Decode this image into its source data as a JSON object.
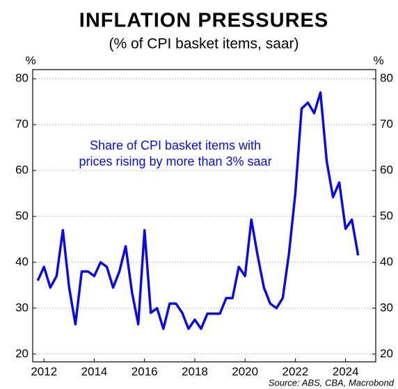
{
  "chart_data": {
    "type": "line",
    "title": "INFLATION PRESSURES",
    "subtitle": "(% of CPI basket items, saar)",
    "y_label": "%",
    "y2_label": "%",
    "annotation": [
      "Share of CPI basket items with",
      "prices rising by more than 3% saar"
    ],
    "source": "Source: ABS, CBA, Macrobond",
    "x": [
      2011.75,
      2012,
      2012.25,
      2012.5,
      2012.75,
      2013,
      2013.25,
      2013.5,
      2013.75,
      2014,
      2014.25,
      2014.5,
      2014.75,
      2015,
      2015.25,
      2015.5,
      2015.75,
      2016,
      2016.25,
      2016.5,
      2016.75,
      2017,
      2017.25,
      2017.5,
      2017.75,
      2018,
      2018.25,
      2018.5,
      2018.75,
      2019,
      2019.25,
      2019.5,
      2019.75,
      2020,
      2020.25,
      2020.5,
      2020.75,
      2021,
      2021.25,
      2021.5,
      2021.75,
      2022,
      2022.25,
      2022.5,
      2022.75,
      2023,
      2023.25,
      2023.5,
      2023.75,
      2024,
      2024.25,
      2024.5
    ],
    "series": [
      {
        "name": "Share of CPI basket items",
        "color": "#0b0bdf",
        "values": [
          36,
          39,
          34.5,
          37,
          47,
          34.5,
          26.5,
          38,
          38,
          37,
          40,
          39,
          34.5,
          38,
          43.5,
          33.5,
          26.5,
          47,
          29,
          30,
          25.5,
          31,
          31,
          29,
          25.5,
          27.5,
          25.5,
          28.8,
          28.8,
          28.8,
          32.2,
          32.2,
          39,
          37,
          49.3,
          41.5,
          34.5,
          31,
          30,
          32.2,
          42,
          55,
          73.5,
          74.8,
          72.5,
          77,
          62,
          54.2,
          57.4,
          47.3,
          49.3,
          41.5
        ]
      }
    ],
    "xlim": [
      2011.55,
      2025.2
    ],
    "xticks": [
      2012,
      2014,
      2016,
      2018,
      2020,
      2022,
      2024
    ],
    "ylim": [
      18.3,
      82
    ],
    "yticks": [
      20,
      30,
      40,
      50,
      60,
      70,
      80
    ],
    "y2lim": [
      18.3,
      82
    ],
    "y2ticks": [
      20,
      30,
      40,
      50,
      60,
      70,
      80
    ],
    "grid": true
  }
}
